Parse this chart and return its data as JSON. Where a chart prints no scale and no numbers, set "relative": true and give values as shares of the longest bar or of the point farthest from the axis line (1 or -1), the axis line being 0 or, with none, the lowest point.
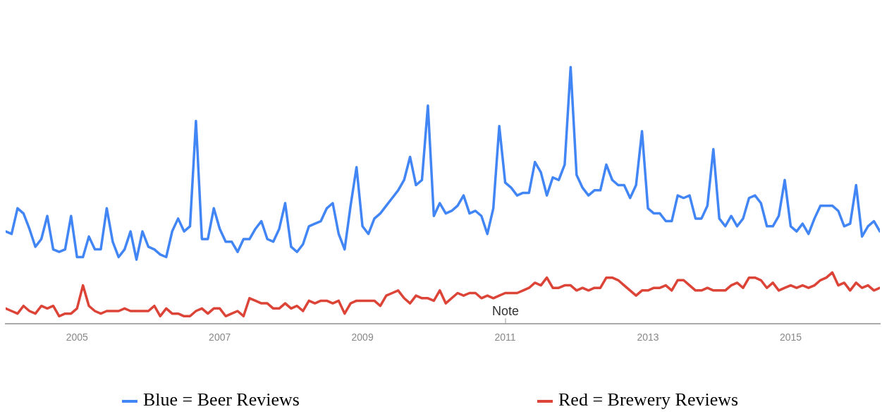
{
  "chart_data": {
    "type": "line",
    "relative": true,
    "legend": "bottom",
    "marker": "none",
    "x": [
      "2004-01",
      "2004-02",
      "2004-03",
      "2004-04",
      "2004-05",
      "2004-06",
      "2004-07",
      "2004-08",
      "2004-09",
      "2004-10",
      "2004-11",
      "2004-12",
      "2005-01",
      "2005-02",
      "2005-03",
      "2005-04",
      "2005-05",
      "2005-06",
      "2005-07",
      "2005-08",
      "2005-09",
      "2005-10",
      "2005-11",
      "2005-12",
      "2006-01",
      "2006-02",
      "2006-03",
      "2006-04",
      "2006-05",
      "2006-06",
      "2006-07",
      "2006-08",
      "2006-09",
      "2006-10",
      "2006-11",
      "2006-12",
      "2007-01",
      "2007-02",
      "2007-03",
      "2007-04",
      "2007-05",
      "2007-06",
      "2007-07",
      "2007-08",
      "2007-09",
      "2007-10",
      "2007-11",
      "2007-12",
      "2008-01",
      "2008-02",
      "2008-03",
      "2008-04",
      "2008-05",
      "2008-06",
      "2008-07",
      "2008-08",
      "2008-09",
      "2008-10",
      "2008-11",
      "2008-12",
      "2009-01",
      "2009-02",
      "2009-03",
      "2009-04",
      "2009-05",
      "2009-06",
      "2009-07",
      "2009-08",
      "2009-09",
      "2009-10",
      "2009-11",
      "2009-12",
      "2010-01",
      "2010-02",
      "2010-03",
      "2010-04",
      "2010-05",
      "2010-06",
      "2010-07",
      "2010-08",
      "2010-09",
      "2010-10",
      "2010-11",
      "2010-12",
      "2011-01",
      "2011-02",
      "2011-03",
      "2011-04",
      "2011-05",
      "2011-06",
      "2011-07",
      "2011-08",
      "2011-09",
      "2011-10",
      "2011-11",
      "2011-12",
      "2012-01",
      "2012-02",
      "2012-03",
      "2012-04",
      "2012-05",
      "2012-06",
      "2012-07",
      "2012-08",
      "2012-09",
      "2012-10",
      "2012-11",
      "2012-12",
      "2013-01",
      "2013-02",
      "2013-03",
      "2013-04",
      "2013-05",
      "2013-06",
      "2013-07",
      "2013-08",
      "2013-09",
      "2013-10",
      "2013-11",
      "2013-12",
      "2014-01",
      "2014-02",
      "2014-03",
      "2014-04",
      "2014-05",
      "2014-06",
      "2014-07",
      "2014-08",
      "2014-09",
      "2014-10",
      "2014-11",
      "2014-12",
      "2015-01",
      "2015-02",
      "2015-03",
      "2015-04",
      "2015-05",
      "2015-06",
      "2015-07",
      "2015-08",
      "2015-09",
      "2015-10",
      "2015-11",
      "2015-12",
      "2016-01",
      "2016-02",
      "2016-03",
      "2016-04"
    ],
    "xlim": [
      "2004-01",
      "2016-04"
    ],
    "xticks": [
      "2005",
      "2007",
      "2009",
      "2011",
      "2013",
      "2015"
    ],
    "annotations": [
      "Note"
    ],
    "series": [
      {
        "name": "Blue = Beer Reviews",
        "color": "#4285f4",
        "values": [
          0.36,
          0.35,
          0.45,
          0.43,
          0.37,
          0.3,
          0.33,
          0.42,
          0.29,
          0.28,
          0.29,
          0.42,
          0.26,
          0.26,
          0.34,
          0.29,
          0.29,
          0.45,
          0.32,
          0.26,
          0.29,
          0.36,
          0.25,
          0.36,
          0.3,
          0.29,
          0.27,
          0.26,
          0.36,
          0.41,
          0.36,
          0.38,
          0.79,
          0.33,
          0.33,
          0.45,
          0.37,
          0.32,
          0.32,
          0.28,
          0.33,
          0.33,
          0.37,
          0.4,
          0.33,
          0.32,
          0.37,
          0.47,
          0.3,
          0.28,
          0.31,
          0.38,
          0.39,
          0.4,
          0.45,
          0.47,
          0.35,
          0.29,
          0.46,
          0.61,
          0.38,
          0.35,
          0.41,
          0.43,
          0.46,
          0.49,
          0.52,
          0.56,
          0.65,
          0.54,
          0.56,
          0.85,
          0.42,
          0.47,
          0.43,
          0.44,
          0.46,
          0.5,
          0.43,
          0.44,
          0.42,
          0.35,
          0.45,
          0.77,
          0.55,
          0.53,
          0.5,
          0.51,
          0.51,
          0.63,
          0.59,
          0.5,
          0.57,
          0.56,
          0.62,
          1.0,
          0.58,
          0.53,
          0.5,
          0.52,
          0.52,
          0.62,
          0.56,
          0.54,
          0.54,
          0.49,
          0.54,
          0.75,
          0.45,
          0.43,
          0.43,
          0.4,
          0.4,
          0.5,
          0.49,
          0.5,
          0.41,
          0.41,
          0.46,
          0.68,
          0.41,
          0.38,
          0.42,
          0.38,
          0.41,
          0.49,
          0.5,
          0.47,
          0.38,
          0.38,
          0.42,
          0.56,
          0.38,
          0.36,
          0.39,
          0.35,
          0.41,
          0.46,
          0.46,
          0.46,
          0.44,
          0.38,
          0.39,
          0.54,
          0.34,
          0.38,
          0.4,
          0.36
        ]
      },
      {
        "name": "Red = Brewery Reviews",
        "color": "#db4437",
        "values": [
          0.06,
          0.05,
          0.04,
          0.07,
          0.05,
          0.04,
          0.07,
          0.06,
          0.07,
          0.03,
          0.04,
          0.04,
          0.06,
          0.15,
          0.07,
          0.05,
          0.04,
          0.05,
          0.05,
          0.05,
          0.06,
          0.05,
          0.05,
          0.05,
          0.05,
          0.07,
          0.03,
          0.06,
          0.04,
          0.04,
          0.03,
          0.03,
          0.05,
          0.06,
          0.04,
          0.06,
          0.06,
          0.03,
          0.04,
          0.05,
          0.03,
          0.1,
          0.09,
          0.08,
          0.08,
          0.06,
          0.06,
          0.08,
          0.06,
          0.07,
          0.05,
          0.09,
          0.08,
          0.09,
          0.09,
          0.08,
          0.09,
          0.04,
          0.08,
          0.09,
          0.09,
          0.09,
          0.09,
          0.07,
          0.11,
          0.12,
          0.13,
          0.1,
          0.08,
          0.11,
          0.1,
          0.1,
          0.09,
          0.13,
          0.08,
          0.1,
          0.12,
          0.11,
          0.12,
          0.12,
          0.1,
          0.11,
          0.1,
          0.11,
          0.12,
          0.12,
          0.12,
          0.13,
          0.14,
          0.16,
          0.15,
          0.18,
          0.14,
          0.14,
          0.15,
          0.15,
          0.13,
          0.14,
          0.13,
          0.14,
          0.14,
          0.18,
          0.18,
          0.17,
          0.15,
          0.13,
          0.11,
          0.13,
          0.13,
          0.14,
          0.14,
          0.15,
          0.13,
          0.17,
          0.17,
          0.15,
          0.13,
          0.13,
          0.14,
          0.13,
          0.13,
          0.13,
          0.15,
          0.16,
          0.14,
          0.18,
          0.18,
          0.17,
          0.14,
          0.16,
          0.13,
          0.14,
          0.15,
          0.14,
          0.15,
          0.14,
          0.15,
          0.17,
          0.18,
          0.2,
          0.15,
          0.16,
          0.13,
          0.16,
          0.14,
          0.15,
          0.13,
          0.14
        ]
      }
    ]
  }
}
